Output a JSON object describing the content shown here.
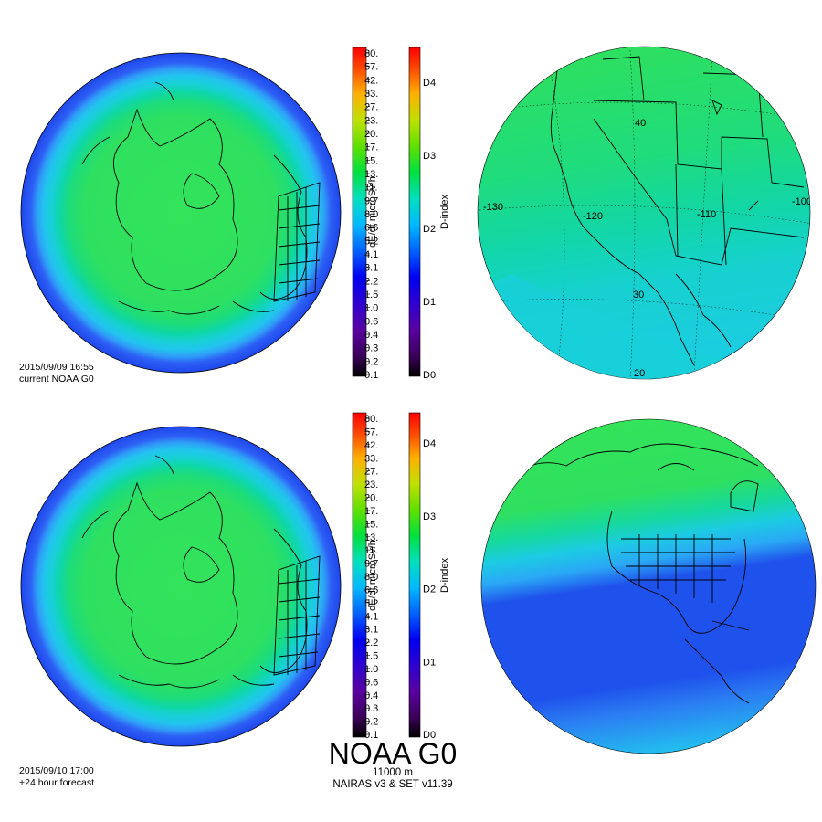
{
  "panels": [
    {
      "id": "top",
      "date": "2015/09/09 16:55",
      "label": "current NOAA G0"
    },
    {
      "id": "bottom",
      "date": "2015/09/10 17:00",
      "label": "+24 hour forecast"
    }
  ],
  "dose_scale": {
    "label": "dE/dt microSv/h",
    "ticks": [
      "80.",
      "57.",
      "42.",
      "33.",
      "27.",
      "23.",
      "20.",
      "17.",
      "15.",
      "13.",
      "11.",
      "9.7",
      "8.0",
      "6.6",
      "5.2",
      "4.1",
      "3.1",
      "2.2",
      "1.5",
      "1.0",
      "0.6",
      "0.4",
      "0.3",
      "0.2",
      "0.1"
    ]
  },
  "d_scale": {
    "label": "D-index",
    "ticks": [
      "D4",
      "D3",
      "D2",
      "D1",
      "D0"
    ]
  },
  "footer": {
    "title": "NOAA G0",
    "altitude": "11000 m",
    "model": "NAIRAS v3 & SET v11.39"
  },
  "regional_map": {
    "lat_labels": [
      "40",
      "30",
      "20"
    ],
    "lon_labels": [
      "-130",
      "-120",
      "-110",
      "-100"
    ]
  },
  "colors": {
    "core_green": "#33e35a",
    "mid_green": "#1ddc7a",
    "teal": "#0ed7a8",
    "aqua": "#18d0d6",
    "cyan": "#22c4ef",
    "sky": "#2f9ef7",
    "blue": "#2d5ff5",
    "deep_blue": "#1e47ec",
    "coastline": "#000000"
  }
}
